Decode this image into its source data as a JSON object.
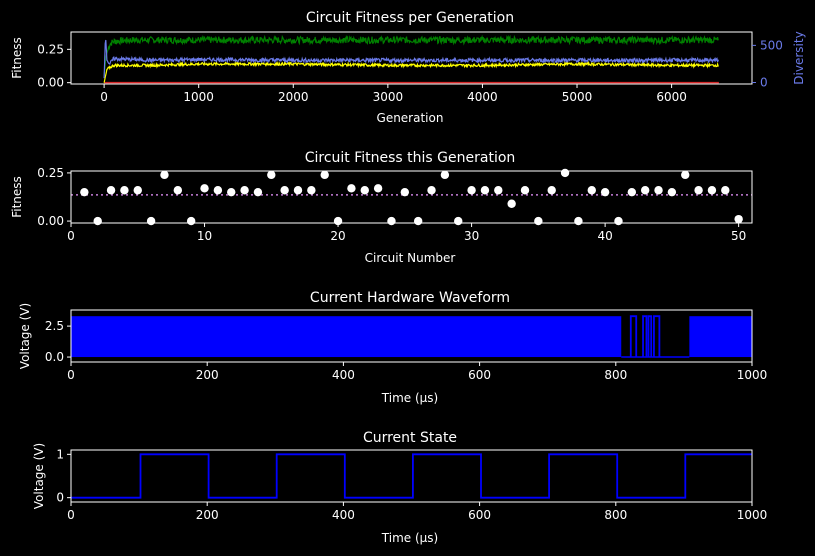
{
  "colors": {
    "background": "#000000",
    "axis": "#ffffff",
    "best": "#008000",
    "mean": "#ffff00",
    "worst": "#d62728",
    "diversity": "#6a7ae8",
    "points": "#ffffff",
    "avg_line": "#c77dd8",
    "waveform": "#0000ff"
  },
  "chart_data": [
    {
      "type": "line",
      "title": "Circuit Fitness per Generation",
      "xlabel": "Generation",
      "ylabel": "Fitness",
      "ylabel_right": "Diversity",
      "xlim": [
        -350,
        6850
      ],
      "ylim": [
        -0.01,
        0.38
      ],
      "ylim_right": [
        -20,
        680
      ],
      "xticks": [
        0,
        1000,
        2000,
        3000,
        4000,
        5000,
        6000
      ],
      "yticks": [
        "0.00",
        "0.25"
      ],
      "yticks_right": [
        "0",
        "500"
      ],
      "series": [
        {
          "key": "best",
          "x": [
            0,
            20,
            60,
            100,
            300,
            600,
            1000,
            1500,
            2000,
            3000,
            4000,
            5000,
            6000,
            6500
          ],
          "y": [
            0.05,
            0.2,
            0.29,
            0.31,
            0.32,
            0.32,
            0.32,
            0.32,
            0.32,
            0.32,
            0.32,
            0.32,
            0.32,
            0.32
          ]
        },
        {
          "key": "mean",
          "x": [
            0,
            30,
            100,
            500,
            1000,
            2000,
            3000,
            4000,
            5000,
            6000,
            6500
          ],
          "y": [
            0.0,
            0.1,
            0.13,
            0.13,
            0.14,
            0.14,
            0.13,
            0.13,
            0.14,
            0.13,
            0.13
          ]
        },
        {
          "key": "worst",
          "x": [
            0,
            6500
          ],
          "y": [
            0.0,
            0.0
          ]
        },
        {
          "key": "diversity",
          "x": [
            0,
            15,
            30,
            60,
            100,
            500,
            1000,
            2000,
            3000,
            4000,
            5000,
            6000,
            6500
          ],
          "y": [
            60,
            640,
            300,
            250,
            320,
            300,
            310,
            300,
            300,
            300,
            300,
            300,
            300
          ]
        }
      ]
    },
    {
      "type": "scatter",
      "title": "Circuit Fitness this Generation",
      "xlabel": "Circuit Number",
      "ylabel": "Fitness",
      "xlim": [
        0,
        51
      ],
      "ylim": [
        -0.01,
        0.26
      ],
      "xticks": [
        0,
        10,
        20,
        30,
        40,
        50
      ],
      "yticks": [
        "0.00",
        "0.25"
      ],
      "average": 0.136,
      "x": [
        1,
        2,
        3,
        4,
        5,
        6,
        7,
        8,
        9,
        10,
        11,
        12,
        13,
        14,
        15,
        16,
        17,
        18,
        19,
        20,
        21,
        22,
        23,
        24,
        25,
        26,
        27,
        28,
        29,
        30,
        31,
        32,
        33,
        34,
        35,
        36,
        37,
        38,
        39,
        40,
        41,
        42,
        43,
        44,
        45,
        46,
        47,
        48,
        49,
        50
      ],
      "y": [
        0.15,
        0.0,
        0.16,
        0.16,
        0.16,
        0.0,
        0.24,
        0.16,
        0.0,
        0.17,
        0.16,
        0.15,
        0.16,
        0.15,
        0.24,
        0.16,
        0.16,
        0.16,
        0.24,
        0.0,
        0.17,
        0.16,
        0.17,
        0.0,
        0.15,
        0.0,
        0.16,
        0.24,
        0.0,
        0.16,
        0.16,
        0.16,
        0.09,
        0.16,
        0.0,
        0.16,
        0.25,
        0.0,
        0.16,
        0.15,
        0.0,
        0.15,
        0.16,
        0.16,
        0.15,
        0.24,
        0.16,
        0.16,
        0.16,
        0.01
      ]
    },
    {
      "type": "area",
      "title": "Current Hardware Waveform",
      "xlabel": "Time (µs)",
      "ylabel": "Voltage (V)",
      "xlim": [
        0,
        1000
      ],
      "ylim": [
        -0.4,
        3.8
      ],
      "xticks": [
        0,
        200,
        400,
        600,
        800,
        1000
      ],
      "yticks": [
        "0.0",
        "2.5"
      ],
      "high": 3.3,
      "low": 0.0,
      "dense_ranges": [
        [
          0,
          808
        ],
        [
          908,
          1000
        ]
      ],
      "pulses": [
        [
          822,
          830
        ],
        [
          840,
          845
        ],
        [
          848,
          852
        ],
        [
          856,
          864
        ]
      ]
    },
    {
      "type": "line",
      "title": "Current State",
      "xlabel": "Time (µs)",
      "ylabel": "Voltage (V)",
      "xlim": [
        0,
        1000
      ],
      "ylim": [
        -0.1,
        1.1
      ],
      "xticks": [
        0,
        200,
        400,
        600,
        800,
        1000
      ],
      "yticks": [
        "0",
        "1"
      ],
      "x": [
        0,
        102,
        102,
        202,
        202,
        302,
        302,
        402,
        402,
        502,
        502,
        602,
        602,
        702,
        702,
        802,
        802,
        902,
        902,
        1000
      ],
      "y": [
        0,
        0,
        1,
        1,
        0,
        0,
        1,
        1,
        0,
        0,
        1,
        1,
        0,
        0,
        1,
        1,
        0,
        0,
        1,
        1
      ]
    }
  ]
}
